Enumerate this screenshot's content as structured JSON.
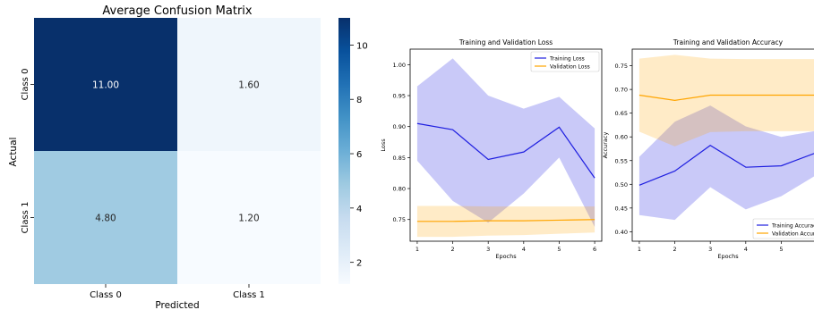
{
  "chart_data": [
    {
      "type": "heatmap",
      "title": "Average Confusion Matrix",
      "xlabel": "Predicted",
      "ylabel": "Actual",
      "x_categories": [
        "Class 0",
        "Class 1"
      ],
      "y_categories": [
        "Class 0",
        "Class 1"
      ],
      "values": [
        [
          11.0,
          1.6
        ],
        [
          4.8,
          1.2
        ]
      ],
      "cell_labels": [
        [
          "11.00",
          "1.60"
        ],
        [
          "4.80",
          "1.20"
        ]
      ],
      "colormap": "Blues",
      "colorbar": {
        "ticks": [
          2,
          4,
          6,
          8,
          10
        ],
        "tick_labels": [
          "2",
          "4",
          "6",
          "8",
          "10"
        ],
        "range": [
          1.2,
          11.0
        ]
      }
    },
    {
      "type": "line",
      "title": "Training and Validation Loss",
      "xlabel": "Epochs",
      "ylabel": "Loss",
      "x": [
        1,
        2,
        3,
        4,
        5,
        6
      ],
      "xticks": [
        "1",
        "2",
        "3",
        "4",
        "5",
        "6"
      ],
      "yticks": [
        "0.75",
        "0.80",
        "0.85",
        "0.90",
        "0.95",
        "1.00"
      ],
      "ylim": [
        0.715,
        1.025
      ],
      "xlim": [
        0.8,
        6.2
      ],
      "grid": false,
      "legend": "top-right",
      "series": [
        {
          "name": "Training Loss",
          "color": "#1f1fe0",
          "values": [
            0.905,
            0.895,
            0.847,
            0.859,
            0.899,
            0.817
          ],
          "lower": [
            0.845,
            0.78,
            0.745,
            0.792,
            0.85,
            0.738
          ],
          "upper": [
            0.965,
            1.01,
            0.95,
            0.929,
            0.948,
            0.897
          ]
        },
        {
          "name": "Validation Loss",
          "color": "#ffa500",
          "values": [
            0.747,
            0.747,
            0.748,
            0.748,
            0.749,
            0.75
          ],
          "lower": [
            0.722,
            0.722,
            0.724,
            0.725,
            0.727,
            0.729
          ],
          "upper": [
            0.772,
            0.772,
            0.771,
            0.771,
            0.771,
            0.771
          ]
        }
      ]
    },
    {
      "type": "line",
      "title": "Training and Validation Accuracy",
      "xlabel": "Epochs",
      "ylabel": "Accuracy",
      "x": [
        1,
        2,
        3,
        4,
        5,
        6
      ],
      "xticks": [
        "1",
        "2",
        "3",
        "4",
        "5",
        "6"
      ],
      "yticks": [
        "0.40",
        "0.45",
        "0.50",
        "0.55",
        "0.60",
        "0.65",
        "0.70",
        "0.75"
      ],
      "ylim": [
        0.38,
        0.785
      ],
      "xlim": [
        0.8,
        6.2
      ],
      "grid": false,
      "legend": "bottom-right",
      "series": [
        {
          "name": "Training Accuracy",
          "color": "#1f1fe0",
          "values": [
            0.498,
            0.528,
            0.582,
            0.536,
            0.539,
            0.567
          ],
          "lower": [
            0.435,
            0.425,
            0.494,
            0.447,
            0.475,
            0.52
          ],
          "upper": [
            0.558,
            0.632,
            0.666,
            0.622,
            0.6,
            0.613
          ]
        },
        {
          "name": "Validation Accuracy",
          "color": "#ffa500",
          "values": [
            0.688,
            0.677,
            0.688,
            0.688,
            0.688,
            0.688
          ],
          "lower": [
            0.611,
            0.58,
            0.61,
            0.612,
            0.612,
            0.612
          ],
          "upper": [
            0.765,
            0.773,
            0.765,
            0.764,
            0.764,
            0.764
          ]
        }
      ]
    }
  ]
}
